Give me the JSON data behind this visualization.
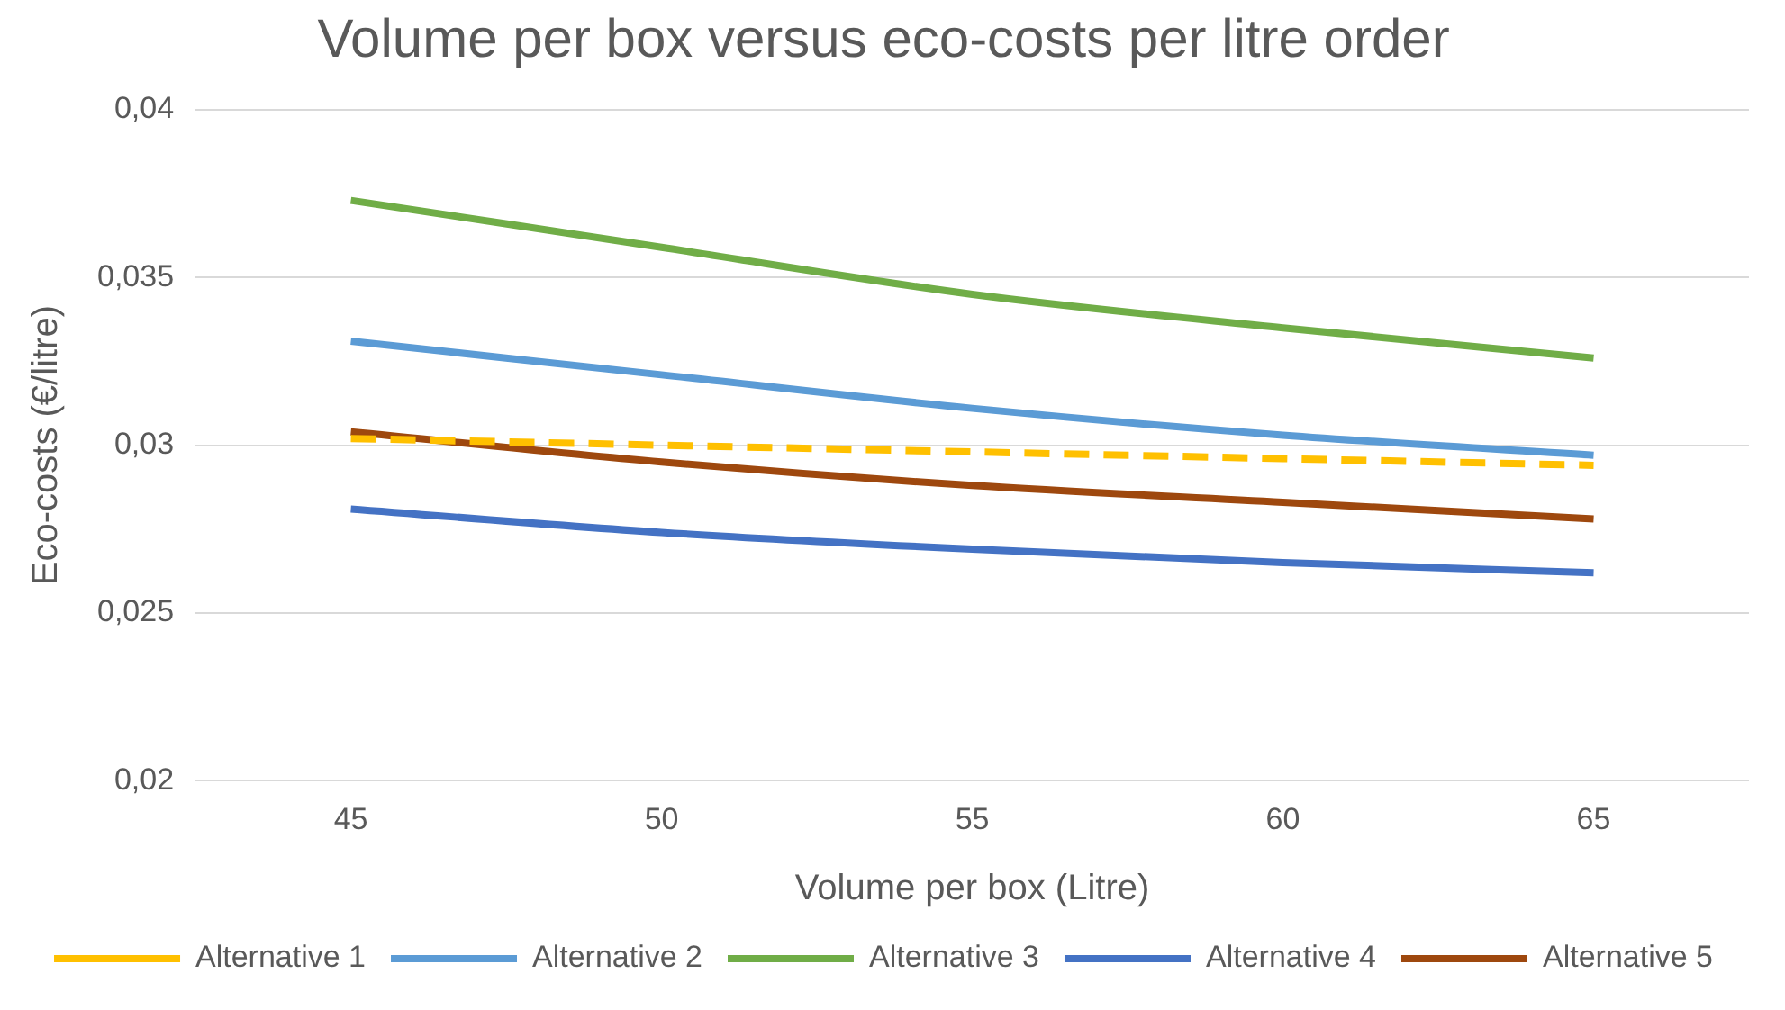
{
  "chart_data": {
    "type": "line",
    "title": "Volume per box versus eco-costs per litre order",
    "xlabel": "Volume per box (Litre)",
    "ylabel": "Eco-costs (€/litre)",
    "categories": [
      "45",
      "50",
      "55",
      "60",
      "65"
    ],
    "series": [
      {
        "name": "Alternative 1",
        "color": "#ffc000",
        "line_style": "dashed",
        "values": [
          0.0302,
          0.03,
          0.0298,
          0.0296,
          0.0294
        ]
      },
      {
        "name": "Alternative 2",
        "color": "#5b9bd5",
        "values": [
          0.0331,
          0.0321,
          0.0311,
          0.0303,
          0.0297
        ]
      },
      {
        "name": "Alternative 3",
        "color": "#70ad47",
        "values": [
          0.0373,
          0.0359,
          0.0345,
          0.0335,
          0.0326
        ]
      },
      {
        "name": "Alternative 4",
        "color": "#4472c4",
        "values": [
          0.0281,
          0.0274,
          0.0269,
          0.0265,
          0.0262
        ]
      },
      {
        "name": "Alternative 5",
        "color": "#9e480e",
        "values": [
          0.0304,
          0.0295,
          0.0288,
          0.0283,
          0.0278
        ]
      }
    ],
    "ylim": [
      0.02,
      0.04
    ],
    "yticks": [
      {
        "value": 0.02,
        "label": "0,02"
      },
      {
        "value": 0.025,
        "label": "0,025"
      },
      {
        "value": 0.03,
        "label": "0,03"
      },
      {
        "value": 0.035,
        "label": "0,035"
      },
      {
        "value": 0.04,
        "label": "0,04"
      }
    ],
    "grid": "y",
    "legend": "bottom",
    "marker": "none",
    "line_style": "solid"
  }
}
